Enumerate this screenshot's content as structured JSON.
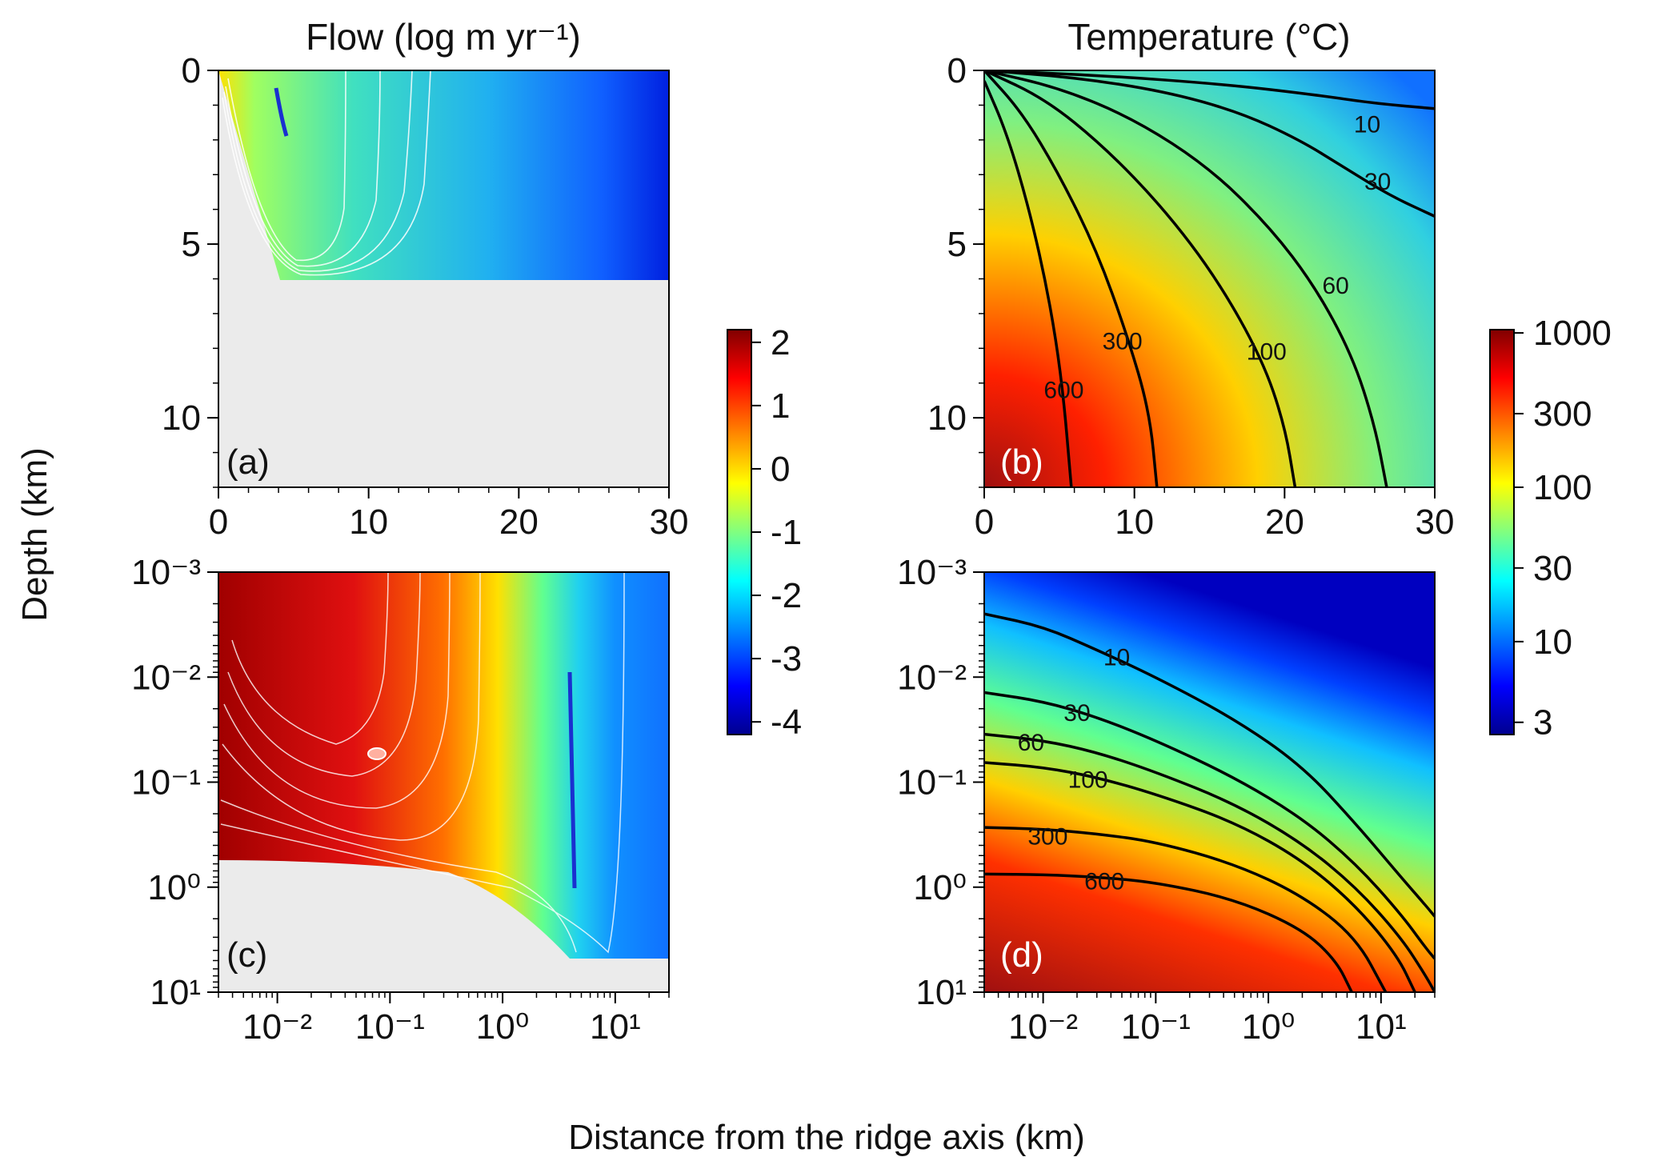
{
  "figure": {
    "shared_xlabel": "Distance from the ridge axis (km)",
    "shared_ylabel": "Depth (km)"
  },
  "colors": {
    "no_data": "#ebebeb",
    "contour_lines_flow": "#ffffff",
    "contour_lines_temperature": "#000000",
    "colormap": [
      "#00008f",
      "#0000ff",
      "#0080ff",
      "#00ffff",
      "#80ff80",
      "#ffff00",
      "#ff8000",
      "#ff0000",
      "#800000"
    ]
  },
  "chart_data": [
    {
      "type": "heatmap",
      "panel": "(a)",
      "title": "Flow (log m yr⁻¹)",
      "x_scale": "linear",
      "y_scale": "linear",
      "xlim": [
        0,
        30
      ],
      "ylim": [
        12,
        0
      ],
      "xticks": [
        0,
        10,
        20,
        30
      ],
      "xtick_labels": [
        "0",
        "10",
        "20",
        "30"
      ],
      "yticks": [
        0,
        5,
        10
      ],
      "ytick_labels": [
        "0",
        "5",
        "10"
      ],
      "domain_bottom_depth": 6,
      "domain_left_boundary": [
        [
          0,
          0
        ],
        [
          4.1,
          6
        ]
      ],
      "value_range": [
        -4,
        2
      ],
      "contour_color": "white"
    },
    {
      "type": "heatmap",
      "panel": "(b)",
      "title": "Temperature (°C)",
      "x_scale": "linear",
      "y_scale": "linear",
      "xlim": [
        0,
        30
      ],
      "ylim": [
        12,
        0
      ],
      "xticks": [
        0,
        10,
        20,
        30
      ],
      "xtick_labels": [
        "0",
        "10",
        "20",
        "30"
      ],
      "yticks": [
        0,
        5,
        10
      ],
      "ytick_labels": [
        "0",
        "5",
        "10"
      ],
      "value_scale": "log",
      "value_range": [
        2.5,
        1000
      ],
      "contours": [
        {
          "level": 10,
          "label": "10",
          "points": [
            [
              0,
              0
            ],
            [
              8,
              0.15
            ],
            [
              16,
              0.4
            ],
            [
              22,
              0.7
            ],
            [
              26,
              0.95
            ],
            [
              30,
              1.1
            ]
          ],
          "label_at": [
            25.5,
            1.55
          ]
        },
        {
          "level": 30,
          "label": "30",
          "points": [
            [
              0,
              0
            ],
            [
              6,
              0.2
            ],
            [
              12,
              0.6
            ],
            [
              17,
              1.2
            ],
            [
              21,
              2.0
            ],
            [
              24,
              2.8
            ],
            [
              27,
              3.6
            ],
            [
              30,
              4.2
            ]
          ],
          "label_at": [
            26.2,
            3.2
          ]
        },
        {
          "level": 60,
          "label": "60",
          "points": [
            [
              0,
              0
            ],
            [
              5,
              0.5
            ],
            [
              10,
              1.4
            ],
            [
              15,
              2.8
            ],
            [
              19,
              4.5
            ],
            [
              22,
              6.2
            ],
            [
              24.5,
              8.2
            ],
            [
              26,
              10.2
            ],
            [
              26.8,
              12
            ]
          ],
          "label_at": [
            23.4,
            6.2
          ]
        },
        {
          "level": 100,
          "label": "100",
          "points": [
            [
              0,
              0
            ],
            [
              4,
              0.8
            ],
            [
              8,
              2.2
            ],
            [
              12,
              4.0
            ],
            [
              15.5,
              6.0
            ],
            [
              18.5,
              8.3
            ],
            [
              20,
              10.2
            ],
            [
              20.7,
              12
            ]
          ],
          "label_at": [
            18.8,
            8.1
          ]
        },
        {
          "level": 300,
          "label": "300",
          "points": [
            [
              0,
              0
            ],
            [
              2.5,
              1.2
            ],
            [
              5,
              3.0
            ],
            [
              7.5,
              5.2
            ],
            [
              9.5,
              7.6
            ],
            [
              11,
              9.8
            ],
            [
              11.5,
              12
            ]
          ],
          "label_at": [
            9.2,
            7.8
          ]
        },
        {
          "level": 600,
          "label": "600",
          "points": [
            [
              0,
              0.3
            ],
            [
              1.5,
              1.8
            ],
            [
              3,
              4.0
            ],
            [
              4.3,
              6.5
            ],
            [
              5.2,
              9.0
            ],
            [
              5.8,
              12
            ]
          ],
          "label_at": [
            5.3,
            9.2
          ]
        }
      ]
    },
    {
      "type": "heatmap",
      "panel": "(c)",
      "x_scale": "log",
      "y_scale": "log",
      "xlim": [
        0.003,
        30
      ],
      "ylim": [
        10,
        0.001
      ],
      "xticks": [
        0.01,
        0.1,
        1,
        10
      ],
      "xtick_labels": [
        "10⁻²",
        "10⁻¹",
        "10⁰",
        "10¹"
      ],
      "yticks": [
        0.001,
        0.01,
        0.1,
        1,
        10
      ],
      "ytick_labels": [
        "10⁻³",
        "10⁻²",
        "10⁻¹",
        "10⁰",
        "10¹"
      ],
      "domain_bottom_depth": 6,
      "value_range": [
        -4,
        2
      ],
      "contour_color": "white"
    },
    {
      "type": "heatmap",
      "panel": "(d)",
      "x_scale": "log",
      "y_scale": "log",
      "xlim": [
        0.003,
        30
      ],
      "ylim": [
        10,
        0.001
      ],
      "xticks": [
        0.01,
        0.1,
        1,
        10
      ],
      "xtick_labels": [
        "10⁻²",
        "10⁻¹",
        "10⁰",
        "10¹"
      ],
      "yticks": [
        0.001,
        0.01,
        0.1,
        1,
        10
      ],
      "ytick_labels": [
        "10⁻³",
        "10⁻²",
        "10⁻¹",
        "10⁰",
        "10¹"
      ],
      "value_scale": "log",
      "value_range": [
        2.5,
        1000
      ],
      "contours": [
        {
          "level": 10,
          "label": "10",
          "points": [
            [
              0.003,
              0.0025
            ],
            [
              0.01,
              0.0033
            ],
            [
              0.03,
              0.0055
            ],
            [
              0.1,
              0.01
            ],
            [
              0.5,
              0.025
            ],
            [
              2,
              0.07
            ],
            [
              6,
              0.25
            ],
            [
              15,
              0.8
            ],
            [
              25,
              1.5
            ],
            [
              30,
              1.9
            ]
          ],
          "label_at": [
            0.045,
            0.0065
          ]
        },
        {
          "level": 30,
          "label": "30",
          "points": [
            [
              0.003,
              0.014
            ],
            [
              0.01,
              0.017
            ],
            [
              0.03,
              0.024
            ],
            [
              0.1,
              0.04
            ],
            [
              0.5,
              0.09
            ],
            [
              2,
              0.22
            ],
            [
              6,
              0.6
            ],
            [
              15,
              1.8
            ],
            [
              25,
              3.8
            ],
            [
              30,
              4.8
            ]
          ],
          "label_at": [
            0.02,
            0.022
          ]
        },
        {
          "level": 60,
          "label": "60",
          "points": [
            [
              0.003,
              0.035
            ],
            [
              0.01,
              0.04
            ],
            [
              0.03,
              0.052
            ],
            [
              0.1,
              0.08
            ],
            [
              0.5,
              0.16
            ],
            [
              2,
              0.38
            ],
            [
              6,
              1.0
            ],
            [
              15,
              3.0
            ],
            [
              25,
              7.0
            ],
            [
              30,
              10
            ]
          ],
          "label_at": [
            0.0078,
            0.042
          ]
        },
        {
          "level": 100,
          "label": "100",
          "points": [
            [
              0.003,
              0.065
            ],
            [
              0.01,
              0.072
            ],
            [
              0.03,
              0.09
            ],
            [
              0.1,
              0.13
            ],
            [
              0.5,
              0.24
            ],
            [
              2,
              0.55
            ],
            [
              6,
              1.5
            ],
            [
              14,
              4.5
            ],
            [
              20,
              10
            ]
          ],
          "label_at": [
            0.025,
            0.095
          ]
        },
        {
          "level": 300,
          "label": "300",
          "points": [
            [
              0.003,
              0.27
            ],
            [
              0.01,
              0.28
            ],
            [
              0.03,
              0.31
            ],
            [
              0.1,
              0.37
            ],
            [
              0.5,
              0.6
            ],
            [
              2,
              1.2
            ],
            [
              6,
              3.0
            ],
            [
              11,
              10
            ]
          ],
          "label_at": [
            0.011,
            0.33
          ]
        },
        {
          "level": 600,
          "label": "600",
          "points": [
            [
              0.003,
              0.75
            ],
            [
              0.01,
              0.76
            ],
            [
              0.03,
              0.8
            ],
            [
              0.1,
              0.9
            ],
            [
              0.5,
              1.3
            ],
            [
              2,
              2.5
            ],
            [
              4,
              5.0
            ],
            [
              5.5,
              10
            ]
          ],
          "label_at": [
            0.035,
            0.88
          ]
        }
      ]
    },
    {
      "type": "colorbar",
      "for_panels": [
        "(a)",
        "(c)"
      ],
      "scale": "linear",
      "range": [
        -4.2,
        2.2
      ],
      "ticks": [
        2,
        1,
        0,
        -1,
        -2,
        -3,
        -4
      ],
      "tick_labels": [
        "2",
        "1",
        "0",
        "-1",
        "-2",
        "-3",
        "-4"
      ]
    },
    {
      "type": "colorbar",
      "for_panels": [
        "(b)",
        "(d)"
      ],
      "scale": "log",
      "range": [
        2.5,
        1050
      ],
      "ticks": [
        1000,
        300,
        100,
        30,
        10,
        3
      ],
      "tick_labels": [
        "1000",
        "300",
        "100",
        "30",
        "10",
        "3"
      ]
    }
  ]
}
